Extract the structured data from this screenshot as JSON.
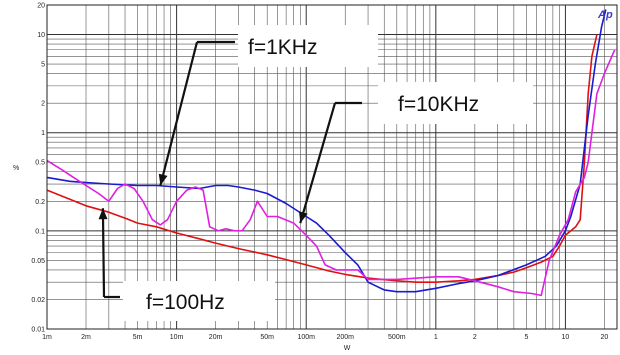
{
  "chart_data": {
    "type": "line",
    "title": "",
    "xlabel": "W",
    "ylabel": "%",
    "x_scale": "log",
    "y_scale": "log",
    "xlim": [
      0.001,
      25
    ],
    "ylim": [
      0.01,
      20
    ],
    "grid": true,
    "x_tick_labels": [
      {
        "value": 0.001,
        "label": "1m"
      },
      {
        "value": 0.002,
        "label": "2m"
      },
      {
        "value": 0.005,
        "label": "5m"
      },
      {
        "value": 0.01,
        "label": "10m"
      },
      {
        "value": 0.02,
        "label": "20m"
      },
      {
        "value": 0.05,
        "label": "50m"
      },
      {
        "value": 0.1,
        "label": "100m"
      },
      {
        "value": 0.2,
        "label": "200m"
      },
      {
        "value": 0.5,
        "label": "500m"
      },
      {
        "value": 1,
        "label": "1"
      },
      {
        "value": 2,
        "label": "2"
      },
      {
        "value": 5,
        "label": "5"
      },
      {
        "value": 10,
        "label": "10"
      },
      {
        "value": 20,
        "label": "20"
      }
    ],
    "y_tick_labels": [
      {
        "value": 0.01,
        "label": "0.01"
      },
      {
        "value": 0.02,
        "label": "0.02"
      },
      {
        "value": 0.05,
        "label": "0.05"
      },
      {
        "value": 0.1,
        "label": "0.1"
      },
      {
        "value": 0.2,
        "label": "0.2"
      },
      {
        "value": 0.5,
        "label": "0.5"
      },
      {
        "value": 1,
        "label": "1"
      },
      {
        "value": 2,
        "label": "2"
      },
      {
        "value": 5,
        "label": "5"
      },
      {
        "value": 10,
        "label": "10"
      },
      {
        "value": 20,
        "label": "20"
      }
    ],
    "series": [
      {
        "name": "f=100Hz",
        "color": "#e01010",
        "points": [
          [
            0.001,
            0.26
          ],
          [
            0.0015,
            0.21
          ],
          [
            0.002,
            0.18
          ],
          [
            0.003,
            0.155
          ],
          [
            0.004,
            0.135
          ],
          [
            0.005,
            0.12
          ],
          [
            0.007,
            0.11
          ],
          [
            0.01,
            0.095
          ],
          [
            0.015,
            0.083
          ],
          [
            0.02,
            0.075
          ],
          [
            0.03,
            0.066
          ],
          [
            0.05,
            0.057
          ],
          [
            0.07,
            0.051
          ],
          [
            0.1,
            0.045
          ],
          [
            0.15,
            0.039
          ],
          [
            0.2,
            0.036
          ],
          [
            0.3,
            0.033
          ],
          [
            0.5,
            0.031
          ],
          [
            0.7,
            0.03
          ],
          [
            1,
            0.03
          ],
          [
            1.5,
            0.031
          ],
          [
            2,
            0.032
          ],
          [
            3,
            0.035
          ],
          [
            4,
            0.038
          ],
          [
            5,
            0.042
          ],
          [
            6.5,
            0.048
          ],
          [
            8,
            0.055
          ],
          [
            9,
            0.07
          ],
          [
            10,
            0.09
          ],
          [
            12,
            0.11
          ],
          [
            13,
            0.13
          ],
          [
            14,
            0.5
          ],
          [
            15,
            2.5
          ],
          [
            16,
            6
          ],
          [
            17.5,
            10
          ]
        ]
      },
      {
        "name": "f=1KHz",
        "color": "#1a1ad0",
        "points": [
          [
            0.001,
            0.35
          ],
          [
            0.0015,
            0.32
          ],
          [
            0.002,
            0.31
          ],
          [
            0.003,
            0.3
          ],
          [
            0.005,
            0.29
          ],
          [
            0.007,
            0.29
          ],
          [
            0.01,
            0.28
          ],
          [
            0.015,
            0.27
          ],
          [
            0.02,
            0.29
          ],
          [
            0.025,
            0.29
          ],
          [
            0.03,
            0.28
          ],
          [
            0.04,
            0.26
          ],
          [
            0.05,
            0.24
          ],
          [
            0.07,
            0.19
          ],
          [
            0.1,
            0.14
          ],
          [
            0.12,
            0.12
          ],
          [
            0.15,
            0.09
          ],
          [
            0.2,
            0.06
          ],
          [
            0.25,
            0.045
          ],
          [
            0.3,
            0.03
          ],
          [
            0.4,
            0.025
          ],
          [
            0.5,
            0.024
          ],
          [
            0.7,
            0.024
          ],
          [
            1,
            0.026
          ],
          [
            1.5,
            0.029
          ],
          [
            2,
            0.031
          ],
          [
            3,
            0.035
          ],
          [
            5,
            0.045
          ],
          [
            7,
            0.055
          ],
          [
            8.5,
            0.07
          ],
          [
            10,
            0.1
          ],
          [
            11,
            0.14
          ],
          [
            13,
            0.3
          ],
          [
            15,
            1.5
          ],
          [
            17,
            5
          ],
          [
            19,
            12
          ],
          [
            20.5,
            18
          ]
        ]
      },
      {
        "name": "f=10KHz",
        "color": "#e020e0",
        "points": [
          [
            0.001,
            0.52
          ],
          [
            0.0013,
            0.42
          ],
          [
            0.0016,
            0.35
          ],
          [
            0.002,
            0.29
          ],
          [
            0.0025,
            0.24
          ],
          [
            0.003,
            0.2
          ],
          [
            0.0035,
            0.27
          ],
          [
            0.004,
            0.3
          ],
          [
            0.0047,
            0.27
          ],
          [
            0.0055,
            0.2
          ],
          [
            0.0065,
            0.13
          ],
          [
            0.0075,
            0.115
          ],
          [
            0.0085,
            0.13
          ],
          [
            0.01,
            0.2
          ],
          [
            0.012,
            0.26
          ],
          [
            0.014,
            0.28
          ],
          [
            0.016,
            0.26
          ],
          [
            0.018,
            0.11
          ],
          [
            0.021,
            0.1
          ],
          [
            0.024,
            0.105
          ],
          [
            0.028,
            0.1
          ],
          [
            0.032,
            0.1
          ],
          [
            0.037,
            0.13
          ],
          [
            0.042,
            0.2
          ],
          [
            0.05,
            0.14
          ],
          [
            0.06,
            0.14
          ],
          [
            0.08,
            0.12
          ],
          [
            0.1,
            0.09
          ],
          [
            0.12,
            0.07
          ],
          [
            0.14,
            0.045
          ],
          [
            0.17,
            0.04
          ],
          [
            0.2,
            0.04
          ],
          [
            0.25,
            0.04
          ],
          [
            0.3,
            0.032
          ],
          [
            0.5,
            0.032
          ],
          [
            1,
            0.034
          ],
          [
            1.5,
            0.034
          ],
          [
            2,
            0.031
          ],
          [
            3,
            0.027
          ],
          [
            4,
            0.024
          ],
          [
            5.5,
            0.023
          ],
          [
            6.5,
            0.022
          ],
          [
            7.5,
            0.05
          ],
          [
            9,
            0.09
          ],
          [
            10.5,
            0.13
          ],
          [
            12,
            0.25
          ],
          [
            14,
            0.35
          ],
          [
            15,
            0.5
          ],
          [
            16,
            1
          ],
          [
            17.5,
            2.5
          ],
          [
            20,
            4
          ],
          [
            24,
            7
          ]
        ]
      }
    ],
    "annotations": [
      {
        "text": "f=1KHz",
        "target_x": 0.0075,
        "target_y": 0.29
      },
      {
        "text": "f=10KHz",
        "target_x": 0.09,
        "target_y": 0.12
      },
      {
        "text": "f=100Hz",
        "target_x": 0.0027,
        "target_y": 0.17
      }
    ],
    "logo": "Ap"
  }
}
